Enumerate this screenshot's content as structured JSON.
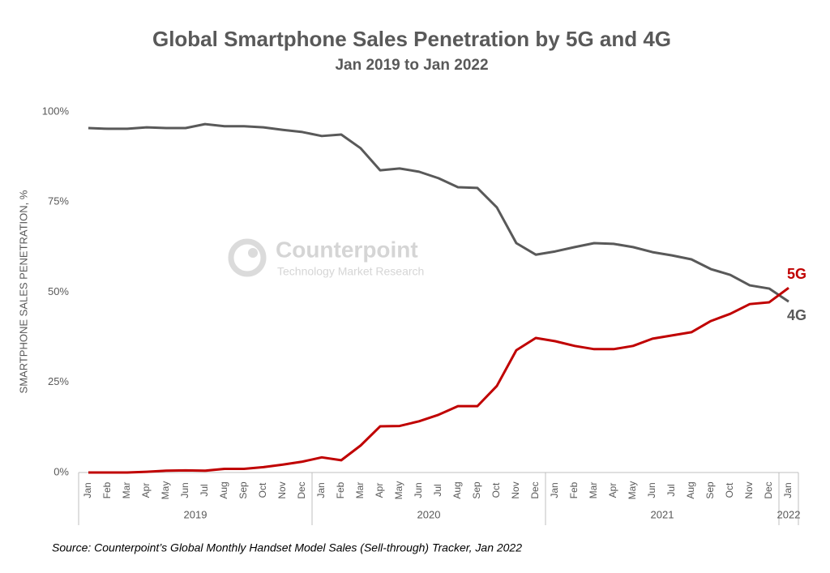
{
  "chart_data": {
    "type": "line",
    "title": "Global Smartphone Sales Penetration by 5G and 4G",
    "subtitle": "Jan 2019 to Jan 2022",
    "y_label": "SMARTPHONE SALES PENETRATION, %",
    "source": "Source: Counterpoint’s Global Monthly Handset Model Sales (Sell-through) Tracker, Jan 2022",
    "watermark": {
      "name": "Counterpoint",
      "tagline": "Technology Market Research"
    },
    "categories": [
      "Jan",
      "Feb",
      "Mar",
      "Apr",
      "May",
      "Jun",
      "Jul",
      "Aug",
      "Sep",
      "Oct",
      "Nov",
      "Dec",
      "Jan",
      "Feb",
      "Mar",
      "Apr",
      "May",
      "Jun",
      "Jul",
      "Aug",
      "Sep",
      "Oct",
      "Nov",
      "Dec",
      "Jan",
      "Feb",
      "Mar",
      "Apr",
      "May",
      "Jun",
      "Jul",
      "Aug",
      "Sep",
      "Oct",
      "Nov",
      "Dec",
      "Jan"
    ],
    "groups": [
      {
        "label": "2019",
        "count": 12
      },
      {
        "label": "2020",
        "count": 12
      },
      {
        "label": "2021",
        "count": 12
      },
      {
        "label": "2022",
        "count": 1
      }
    ],
    "series": [
      {
        "name": "4G",
        "color": "#595959",
        "values": [
          95.5,
          95.3,
          95.3,
          95.7,
          95.5,
          95.5,
          96.6,
          96,
          96,
          95.7,
          95,
          94.4,
          93.3,
          93.7,
          89.9,
          83.8,
          84.3,
          83.4,
          81.6,
          79.1,
          78.9,
          73.5,
          63.6,
          60.4,
          61.3,
          62.5,
          63.6,
          63.4,
          62.5,
          61.1,
          60.2,
          59.1,
          56.4,
          54.8,
          51.9,
          51,
          47.4
        ]
      },
      {
        "name": "5G",
        "color": "#c00000",
        "values": [
          0,
          0,
          0,
          0.2,
          0.5,
          0.6,
          0.5,
          1,
          1,
          1.5,
          2.2,
          3,
          4.2,
          3.4,
          7.5,
          12.8,
          12.9,
          14.2,
          16,
          18.4,
          18.4,
          24,
          33.9,
          37.3,
          36.4,
          35.1,
          34.2,
          34.2,
          35.1,
          37.1,
          38,
          38.9,
          42,
          44,
          46.7,
          47.2,
          51.2
        ]
      }
    ],
    "ylim": [
      0,
      100
    ],
    "yticks": [
      {
        "value": 0,
        "label": "0%"
      },
      {
        "value": 25,
        "label": "25%"
      },
      {
        "value": 50,
        "label": "50%"
      },
      {
        "value": 75,
        "label": "75%"
      },
      {
        "value": 100,
        "label": "100%"
      }
    ],
    "grid": false
  }
}
